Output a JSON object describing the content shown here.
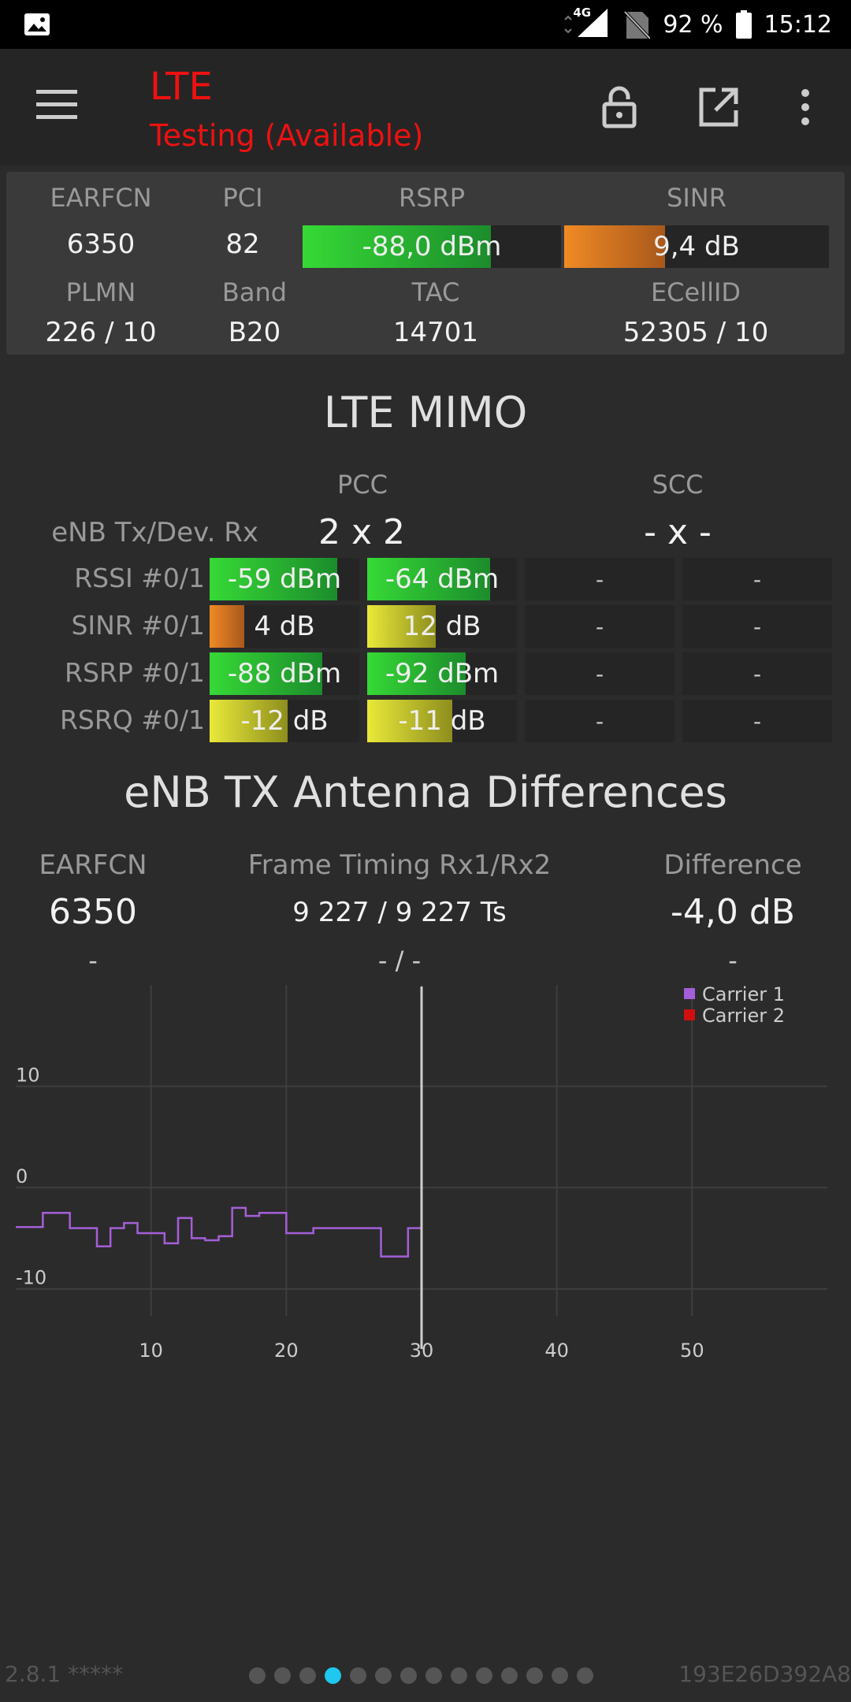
{
  "status_bar": {
    "network": "4G",
    "battery": "92 %",
    "time": "15:12"
  },
  "header": {
    "title": "LTE",
    "subtitle": "Testing (Available)"
  },
  "cell": {
    "labels": {
      "earfcn": "EARFCN",
      "pci": "PCI",
      "rsrp": "RSRP",
      "sinr": "SINR",
      "plmn": "PLMN",
      "band": "Band",
      "tac": "TAC",
      "ecellid": "ECellID"
    },
    "earfcn": "6350",
    "pci": "82",
    "rsrp": {
      "text": "-88,0 dBm",
      "fill": 0.73
    },
    "sinr": {
      "text": "9,4 dB",
      "fill": 0.38
    },
    "plmn": "226 / 10",
    "band": "B20",
    "tac": "14701",
    "ecellid": "52305 / 10"
  },
  "mimo": {
    "title": "LTE MIMO",
    "pcc_label": "PCC",
    "scc_label": "SCC",
    "tx_label": "eNB Tx/Dev. Rx",
    "pcc_value": "2 x 2",
    "scc_value": "- x -",
    "rows": [
      {
        "label": "RSSI #0/1",
        "cells": [
          {
            "text": "-59 dBm",
            "fill": 0.85,
            "color": "green"
          },
          {
            "text": "-64 dBm",
            "fill": 0.82,
            "color": "green"
          },
          {
            "text": "-"
          },
          {
            "text": "-"
          }
        ]
      },
      {
        "label": "SINR #0/1",
        "cells": [
          {
            "text": "4 dB",
            "fill": 0.23,
            "color": "orange"
          },
          {
            "text": "12 dB",
            "fill": 0.46,
            "color": "yellow"
          },
          {
            "text": "-"
          },
          {
            "text": "-"
          }
        ]
      },
      {
        "label": "RSRP #0/1",
        "cells": [
          {
            "text": "-88 dBm",
            "fill": 0.75,
            "color": "green"
          },
          {
            "text": "-92 dBm",
            "fill": 0.66,
            "color": "green"
          },
          {
            "text": "-"
          },
          {
            "text": "-"
          }
        ]
      },
      {
        "label": "RSRQ #0/1",
        "cells": [
          {
            "text": "-12 dB",
            "fill": 0.52,
            "color": "yellow"
          },
          {
            "text": "-11 dB",
            "fill": 0.57,
            "color": "yellow"
          },
          {
            "text": "-"
          },
          {
            "text": "-"
          }
        ]
      }
    ]
  },
  "antenna": {
    "title": "eNB TX Antenna Differences",
    "earfcn_label": "EARFCN",
    "timing_label": "Frame Timing Rx1/Rx2",
    "diff_label": "Difference",
    "earfcn": "6350",
    "timing": "9 227 / 9 227 Ts",
    "diff": "-4,0 dB",
    "earfcn2": "-",
    "timing2": "- / -",
    "diff2": "-"
  },
  "chart_data": {
    "type": "line",
    "xlim": [
      0,
      60
    ],
    "ylim": [
      -15,
      20
    ],
    "xticks": [
      "10",
      "20",
      "30",
      "40",
      "50"
    ],
    "yticks": [
      "10",
      "0",
      "-10"
    ],
    "cursor_x": 30,
    "legend": [
      "Carrier 1",
      "Carrier 2"
    ],
    "legend_position": "top-right",
    "grid": true,
    "series": [
      {
        "name": "Carrier 1",
        "color": "#a45fd8",
        "x": [
          0,
          2,
          3,
          4,
          5,
          6,
          7,
          8,
          9,
          10,
          11,
          12,
          13,
          14,
          15,
          16,
          17,
          18,
          19,
          20,
          21,
          22,
          23,
          24,
          25,
          26,
          27,
          28,
          29,
          30
        ],
        "y": [
          -3.9,
          -2.5,
          -2.5,
          -4.0,
          -4.0,
          -5.8,
          -4.0,
          -3.5,
          -4.5,
          -4.5,
          -5.5,
          -3.0,
          -5.0,
          -5.2,
          -4.8,
          -2.0,
          -2.8,
          -2.5,
          -2.5,
          -4.5,
          -4.5,
          -4.0,
          -4.0,
          -4.0,
          -4.0,
          -4.0,
          -6.8,
          -6.8,
          -4.0,
          -4.0
        ]
      },
      {
        "name": "Carrier 2",
        "color": "#d01010",
        "x": [],
        "y": []
      }
    ]
  },
  "footer": {
    "version": "2.8.1 *****",
    "device_id": "193E26D392A8",
    "pages": 14,
    "active_page": 4
  }
}
